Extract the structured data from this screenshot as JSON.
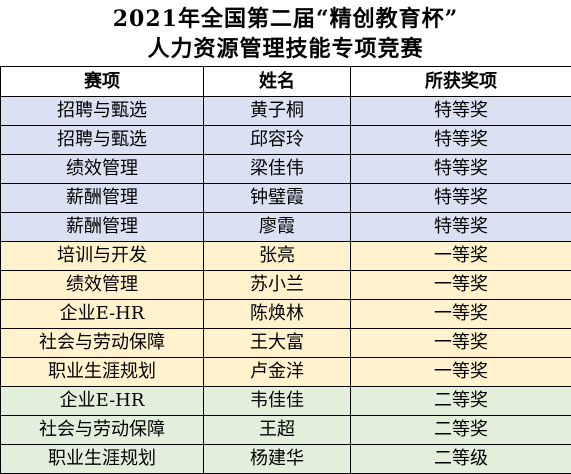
{
  "title": {
    "line1": "2021年全国第二届“精创教育杯”",
    "line2": "人力资源管理技能专项竞赛"
  },
  "table": {
    "headers": [
      "赛项",
      "姓名",
      "所获奖项"
    ],
    "rows": [
      {
        "event": "招聘与甄选",
        "name": "黄子桐",
        "award": "特等奖",
        "group": "blue"
      },
      {
        "event": "招聘与甄选",
        "name": "邱容玲",
        "award": "特等奖",
        "group": "blue"
      },
      {
        "event": "绩效管理",
        "name": "梁佳伟",
        "award": "特等奖",
        "group": "blue"
      },
      {
        "event": "薪酬管理",
        "name": "钟璧霞",
        "award": "特等奖",
        "group": "blue"
      },
      {
        "event": "薪酬管理",
        "name": "廖霞",
        "award": "特等奖",
        "group": "blue"
      },
      {
        "event": "培训与开发",
        "name": "张亮",
        "award": "一等奖",
        "group": "yellow"
      },
      {
        "event": "绩效管理",
        "name": "苏小兰",
        "award": "一等奖",
        "group": "yellow"
      },
      {
        "event": "企业E-HR",
        "name": "陈焕林",
        "award": "一等奖",
        "group": "yellow"
      },
      {
        "event": "社会与劳动保障",
        "name": "王大富",
        "award": "一等奖",
        "group": "yellow"
      },
      {
        "event": "职业生涯规划",
        "name": "卢金洋",
        "award": "一等奖",
        "group": "yellow"
      },
      {
        "event": "企业E-HR",
        "name": "韦佳佳",
        "award": "二等奖",
        "group": "green"
      },
      {
        "event": "社会与劳动保障",
        "name": "王超",
        "award": "二等奖",
        "group": "green"
      },
      {
        "event": "职业生涯规划",
        "name": "杨建华",
        "award": "二等级",
        "group": "green"
      }
    ]
  },
  "colors": {
    "special_prize_row": "#d9e1f2",
    "first_prize_row": "#fff2cc",
    "second_prize_row": "#e2efda"
  }
}
